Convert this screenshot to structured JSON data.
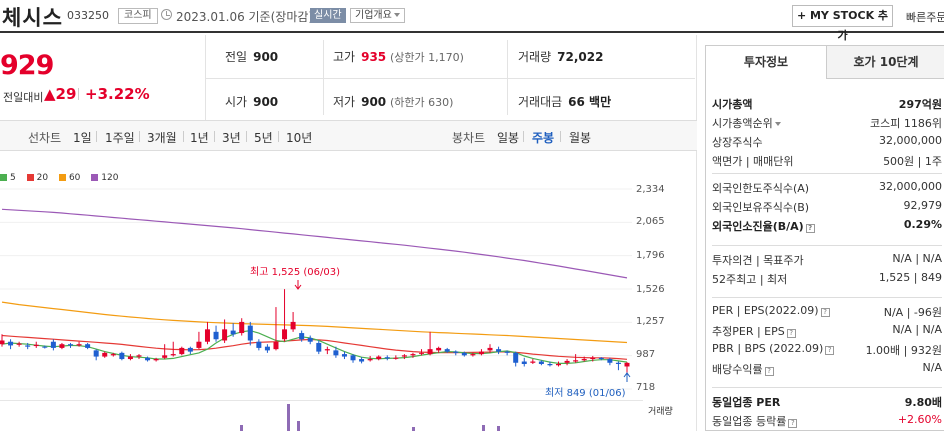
{
  "header": {
    "name": "체시스",
    "code": "033250",
    "market": "코스피",
    "date": "2023.01.06 기준(장마감)",
    "realtime": "실시간",
    "corp_info": "기업개요",
    "my_stock": "+ MY STOCK 추가",
    "quick_order": "빠른주문"
  },
  "price": {
    "current": "929",
    "change_label": "전일대비",
    "change_value": "▲29",
    "change_pct": "+3.22%"
  },
  "quote": {
    "prev_label": "전일",
    "prev": "900",
    "high_label": "고가",
    "high": "935",
    "high_sub": "(상한가 1,170)",
    "volume_label": "거래량",
    "volume": "72,022",
    "open_label": "시가",
    "open": "900",
    "low_label": "저가",
    "low": "900",
    "low_sub": "(하한가 630)",
    "amount_label": "거래대금",
    "amount": "66 백만"
  },
  "toolbar": {
    "line_label": "선차트",
    "periods": [
      "1일",
      "1주일",
      "3개월",
      "1년",
      "3년",
      "5년",
      "10년"
    ],
    "candle_label": "봉차트",
    "candles": [
      "일봉",
      "주봉",
      "월봉"
    ],
    "selected_candle": "주봉"
  },
  "chart_data": {
    "type": "candlestick",
    "unit": "weekly",
    "legend": [
      {
        "name": "5",
        "color": "#4caf50"
      },
      {
        "name": "20",
        "color": "#e53935"
      },
      {
        "name": "60",
        "color": "#f39c12"
      },
      {
        "name": "120",
        "color": "#9b59b6"
      }
    ],
    "y_ticks": [
      "2,334",
      "2,065",
      "1,796",
      "1,526",
      "1,257",
      "987",
      "718"
    ],
    "ylim": [
      718,
      2334
    ],
    "high_annotation": "최고 1,525 (06/03)",
    "low_annotation": "최저 849 (01/06)",
    "volume_label": "거래량",
    "candles": [
      [
        1080,
        1110,
        1060,
        1160
      ],
      [
        1100,
        1070,
        1040,
        1120
      ],
      [
        1075,
        1085,
        1060,
        1100
      ],
      [
        1070,
        1060,
        1040,
        1090
      ],
      [
        1065,
        1075,
        1050,
        1100
      ],
      [
        1060,
        1055,
        1045,
        1070
      ],
      [
        1100,
        1050,
        1030,
        1120
      ],
      [
        1050,
        1080,
        1040,
        1090
      ],
      [
        1080,
        1070,
        1050,
        1090
      ],
      [
        1070,
        1080,
        1060,
        1100
      ],
      [
        1080,
        1050,
        1040,
        1090
      ],
      [
        1030,
        980,
        950,
        1040
      ],
      [
        980,
        1010,
        970,
        1020
      ],
      [
        990,
        1000,
        980,
        1010
      ],
      [
        1010,
        960,
        950,
        1020
      ],
      [
        960,
        980,
        950,
        1000
      ],
      [
        980,
        990,
        960,
        1000
      ],
      [
        970,
        950,
        940,
        980
      ],
      [
        950,
        960,
        940,
        970
      ],
      [
        970,
        990,
        960,
        1080
      ],
      [
        990,
        1000,
        980,
        1100
      ],
      [
        1000,
        1050,
        990,
        1060
      ],
      [
        1050,
        1020,
        1000,
        1060
      ],
      [
        1050,
        1100,
        1040,
        1180
      ],
      [
        1100,
        1200,
        1080,
        1260
      ],
      [
        1180,
        1120,
        1100,
        1230
      ],
      [
        1110,
        1200,
        1090,
        1280
      ],
      [
        1190,
        1160,
        1140,
        1250
      ],
      [
        1170,
        1260,
        1150,
        1290
      ],
      [
        1230,
        1110,
        1070,
        1260
      ],
      [
        1100,
        1050,
        1030,
        1120
      ],
      [
        1060,
        1030,
        1010,
        1080
      ],
      [
        1040,
        1100,
        1030,
        1380
      ],
      [
        1120,
        1200,
        1100,
        1525
      ],
      [
        1200,
        1260,
        1180,
        1340
      ],
      [
        1170,
        1120,
        1100,
        1190
      ],
      [
        1130,
        1100,
        1080,
        1150
      ],
      [
        1090,
        1020,
        1000,
        1110
      ],
      [
        1030,
        1040,
        1000,
        1060
      ],
      [
        1030,
        990,
        970,
        1060
      ],
      [
        1000,
        980,
        960,
        1020
      ],
      [
        990,
        950,
        930,
        1000
      ],
      [
        960,
        940,
        925,
        975
      ],
      [
        950,
        960,
        940,
        985
      ],
      [
        960,
        980,
        950,
        990
      ],
      [
        975,
        965,
        950,
        990
      ],
      [
        970,
        970,
        955,
        990
      ],
      [
        980,
        990,
        960,
        1000
      ],
      [
        990,
        1000,
        970,
        1010
      ],
      [
        1010,
        1010,
        990,
        1040
      ],
      [
        1000,
        1040,
        990,
        1180
      ],
      [
        1030,
        1050,
        1010,
        1060
      ],
      [
        1040,
        1020,
        1010,
        1050
      ],
      [
        1020,
        1010,
        990,
        1030
      ],
      [
        1010,
        990,
        980,
        1020
      ],
      [
        990,
        1000,
        980,
        1010
      ],
      [
        1000,
        1020,
        990,
        1040
      ],
      [
        1030,
        1050,
        1010,
        1080
      ],
      [
        1040,
        1020,
        1000,
        1060
      ],
      [
        1020,
        1010,
        990,
        1030
      ],
      [
        1010,
        930,
        900,
        1020
      ],
      [
        940,
        920,
        900,
        970
      ],
      [
        930,
        940,
        920,
        960
      ],
      [
        940,
        920,
        910,
        950
      ],
      [
        920,
        910,
        900,
        940
      ],
      [
        910,
        920,
        900,
        940
      ],
      [
        930,
        945,
        910,
        960
      ],
      [
        940,
        950,
        930,
        1000
      ],
      [
        950,
        960,
        940,
        980
      ],
      [
        960,
        970,
        940,
        985
      ],
      [
        970,
        960,
        950,
        975
      ],
      [
        960,
        930,
        910,
        970
      ],
      [
        930,
        920,
        870,
        940
      ],
      [
        900,
        929,
        849,
        935
      ]
    ],
    "volumes": [
      0,
      0,
      0,
      0,
      0,
      0,
      0,
      0,
      0,
      0,
      0,
      0,
      0,
      0,
      0,
      0,
      0,
      0,
      0,
      0,
      0,
      0,
      0,
      0,
      0,
      0,
      0,
      0,
      0,
      0,
      0,
      0,
      0,
      0,
      0,
      0,
      0,
      0,
      0,
      0,
      0,
      0,
      0,
      0,
      0,
      0,
      0,
      0,
      0,
      0,
      0,
      0,
      0,
      0,
      0,
      0,
      0,
      0,
      0,
      0,
      0,
      0,
      0,
      0,
      0,
      0,
      0,
      0,
      0,
      0,
      0,
      0,
      0,
      0
    ],
    "ma": {
      "5": [
        1080,
        1090,
        1085,
        1080,
        1072,
        1065,
        1060,
        1065,
        1070,
        1068,
        1060,
        1040,
        1020,
        1005,
        990,
        980,
        975,
        970,
        960,
        960,
        965,
        980,
        995,
        1010,
        1040,
        1090,
        1130,
        1160,
        1180,
        1190,
        1170,
        1140,
        1110,
        1100,
        1120,
        1140,
        1130,
        1110,
        1080,
        1050,
        1020,
        995,
        975,
        965,
        962,
        965,
        968,
        972,
        980,
        992,
        1002,
        1012,
        1020,
        1018,
        1010,
        1005,
        1004,
        1010,
        1020,
        1025,
        1012,
        985,
        965,
        950,
        935,
        925,
        925,
        930,
        940,
        950,
        955,
        955,
        945,
        935
      ],
      "20": [
        1150,
        1145,
        1140,
        1135,
        1130,
        1125,
        1120,
        1115,
        1110,
        1105,
        1100,
        1095,
        1090,
        1085,
        1078,
        1070,
        1062,
        1055,
        1048,
        1042,
        1038,
        1036,
        1035,
        1036,
        1040,
        1048,
        1058,
        1068,
        1080,
        1090,
        1095,
        1098,
        1100,
        1105,
        1110,
        1115,
        1118,
        1115,
        1110,
        1100,
        1090,
        1080,
        1070,
        1060,
        1050,
        1040,
        1032,
        1026,
        1020,
        1016,
        1014,
        1012,
        1012,
        1012,
        1013,
        1014,
        1015,
        1016,
        1018,
        1018,
        1014,
        1008,
        1000,
        994,
        988,
        982,
        978,
        974,
        972,
        970,
        970,
        968,
        964,
        958
      ],
      "60": [
        1420,
        1410,
        1400,
        1392,
        1384,
        1376,
        1368,
        1360,
        1352,
        1344,
        1336,
        1328,
        1320,
        1313,
        1306,
        1300,
        1294,
        1288,
        1282,
        1277,
        1272,
        1268,
        1264,
        1260,
        1257,
        1254,
        1251,
        1248,
        1246,
        1244,
        1242,
        1240,
        1238,
        1236,
        1234,
        1232,
        1230,
        1227,
        1224,
        1220,
        1216,
        1212,
        1208,
        1204,
        1200,
        1196,
        1192,
        1188,
        1184,
        1180,
        1177,
        1174,
        1171,
        1168,
        1165,
        1162,
        1159,
        1156,
        1153,
        1150,
        1146,
        1142,
        1138,
        1134,
        1130,
        1126,
        1122,
        1118,
        1114,
        1110,
        1106,
        1102,
        1098,
        1094
      ],
      "120": [
        2170,
        2166,
        2162,
        2158,
        2154,
        2150,
        2145,
        2140,
        2134,
        2128,
        2122,
        2116,
        2110,
        2104,
        2098,
        2092,
        2086,
        2080,
        2074,
        2068,
        2062,
        2056,
        2050,
        2044,
        2038,
        2032,
        2026,
        2020,
        2013,
        2006,
        1999,
        1992,
        1985,
        1978,
        1971,
        1964,
        1957,
        1950,
        1943,
        1936,
        1929,
        1922,
        1915,
        1908,
        1901,
        1894,
        1887,
        1880,
        1872,
        1864,
        1856,
        1848,
        1840,
        1832,
        1823,
        1814,
        1805,
        1796,
        1786,
        1776,
        1766,
        1756,
        1745,
        1734,
        1723,
        1712,
        1700,
        1688,
        1676,
        1664,
        1652,
        1640,
        1628,
        1616
      ]
    }
  },
  "invest": {
    "tab_active": "투자정보",
    "tab_other": "호가 10단계",
    "rows1": [
      {
        "k": "시가총액",
        "v": "297억원",
        "bold": true
      },
      {
        "k": "시가총액순위",
        "v": "코스피 1186위",
        "dd": true
      },
      {
        "k": "상장주식수",
        "v": "32,000,000"
      },
      {
        "k": "액면가 | 매매단위",
        "v": "500원 | 1주"
      }
    ],
    "rows2": [
      {
        "k": "외국인한도주식수(A)",
        "v": "32,000,000"
      },
      {
        "k": "외국인보유주식수(B)",
        "v": "92,979"
      },
      {
        "k": "외국인소진율(B/A)",
        "v": "0.29%",
        "bold": true,
        "q": true
      }
    ],
    "rows3": [
      {
        "k": "투자의견 | 목표주가",
        "v": "N/A | N/A"
      },
      {
        "k": "52주최고 | 최저",
        "v": "1,525 | 849"
      }
    ],
    "rows4": [
      {
        "k": "PER | EPS(2022.09)",
        "v": "N/A | -96원",
        "q": true
      },
      {
        "k": "추정PER | EPS",
        "v": "N/A | N/A",
        "q": true
      },
      {
        "k": "PBR | BPS (2022.09)",
        "v": "1.00배 | 932원",
        "q": true
      },
      {
        "k": "배당수익률",
        "v": "N/A",
        "q": true
      }
    ],
    "rows5": [
      {
        "k": "동일업종 PER",
        "v": "9.80배",
        "bold": true
      },
      {
        "k": "동일업종 등락률",
        "v": "+2.60%",
        "up": true,
        "q": true
      }
    ]
  }
}
